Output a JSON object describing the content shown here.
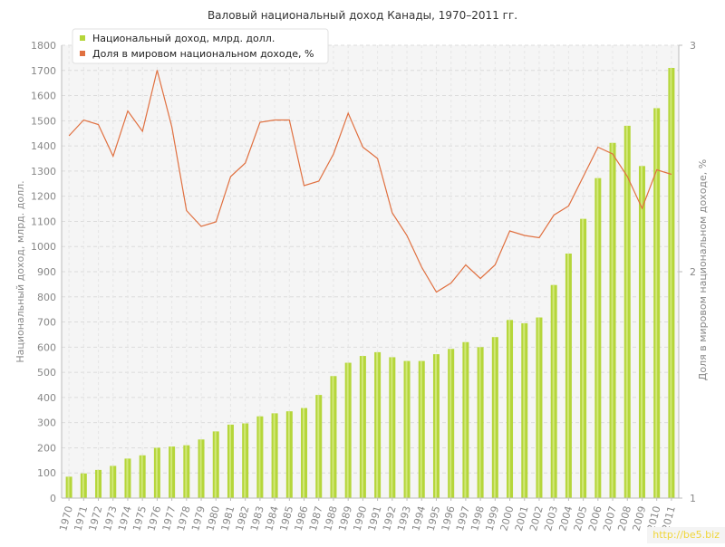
{
  "chart_data": {
    "type": "bar+line",
    "title": "Валовый национальный доход Канады, 1970–2011 гг.",
    "ylabel": "Национальный доход, млрд. долл.",
    "y2label": "Доля в мировом национальном доходе, %",
    "ylim": [
      0,
      1800
    ],
    "y2lim": [
      1,
      3
    ],
    "yticks": [
      "0",
      "100",
      "200",
      "300",
      "400",
      "500",
      "600",
      "700",
      "800",
      "900",
      "1000",
      "1100",
      "1200",
      "1300",
      "1400",
      "1500",
      "1600",
      "1700",
      "1800"
    ],
    "y2ticks": [
      "1",
      "2",
      "3"
    ],
    "grid": true,
    "legend_placement": "top-left",
    "categories": [
      "1970",
      "1971",
      "1972",
      "1973",
      "1974",
      "1975",
      "1976",
      "1977",
      "1978",
      "1979",
      "1980",
      "1981",
      "1982",
      "1983",
      "1984",
      "1985",
      "1986",
      "1987",
      "1988",
      "1989",
      "1990",
      "1991",
      "1992",
      "1993",
      "1994",
      "1995",
      "1996",
      "1997",
      "1998",
      "1999",
      "2000",
      "2001",
      "2002",
      "2003",
      "2004",
      "2005",
      "2006",
      "2007",
      "2008",
      "2009",
      "2010",
      "2011"
    ],
    "series": [
      {
        "name": "Национальный доход, млрд. долл.",
        "type": "bar",
        "axis": "left",
        "color": "#b5d63a",
        "values": [
          85,
          98,
          112,
          128,
          157,
          170,
          200,
          205,
          210,
          233,
          265,
          292,
          297,
          325,
          337,
          345,
          358,
          410,
          485,
          538,
          565,
          580,
          560,
          545,
          545,
          572,
          593,
          620,
          600,
          640,
          708,
          695,
          718,
          847,
          972,
          1110,
          1272,
          1412,
          1480,
          1320,
          1550,
          1710
        ]
      },
      {
        "name": "Доля в мировом национальном доходе, %",
        "type": "line",
        "axis": "right",
        "color": "#e07040",
        "values": [
          2.6,
          2.67,
          2.65,
          2.51,
          2.71,
          2.62,
          2.89,
          2.64,
          2.27,
          2.2,
          2.22,
          2.42,
          2.48,
          2.66,
          2.67,
          2.67,
          2.38,
          2.4,
          2.52,
          2.7,
          2.55,
          2.5,
          2.26,
          2.16,
          2.02,
          1.91,
          1.95,
          2.03,
          1.97,
          2.03,
          2.18,
          2.16,
          2.15,
          2.25,
          2.29,
          2.42,
          2.55,
          2.52,
          2.42,
          2.28,
          2.45,
          2.43
        ]
      }
    ]
  },
  "watermark": "http://be5.biz"
}
